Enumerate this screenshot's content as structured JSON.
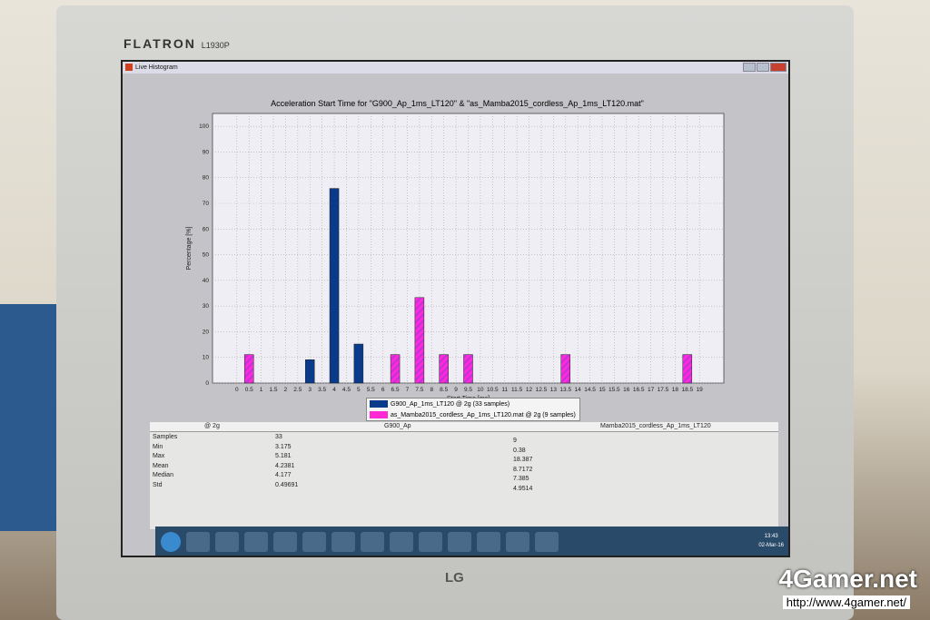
{
  "monitor": {
    "brand": "FLATRON",
    "model": "L1930P",
    "logo": "LG"
  },
  "window": {
    "title": "Live Histogram"
  },
  "chart_data": {
    "type": "bar",
    "title": "Acceleration Start Time for \"G900_Ap_1ms_LT120\" & \"as_Mamba2015_cordless_Ap_1ms_LT120.mat\"",
    "xlabel": "Start Time [ms]",
    "ylabel": "Percentage [%]",
    "xlim": [
      -1,
      20
    ],
    "ylim": [
      0,
      105
    ],
    "xticks": [
      "0",
      "0.5",
      "1",
      "1.5",
      "2",
      "2.5",
      "3",
      "3.5",
      "4",
      "4.5",
      "5",
      "5.5",
      "6",
      "6.5",
      "7",
      "7.5",
      "8",
      "8.5",
      "9",
      "9.5",
      "10",
      "10.5",
      "11",
      "11.5",
      "12",
      "12.5",
      "13",
      "13.5",
      "14",
      "14.5",
      "15",
      "15.5",
      "16",
      "16.5",
      "17",
      "17.5",
      "18",
      "18.5",
      "19"
    ],
    "yticks": [
      0,
      10,
      20,
      30,
      40,
      50,
      60,
      70,
      80,
      90,
      100
    ],
    "grid": true,
    "legend_position": "bottom",
    "series": [
      {
        "name": "G900_Ap_1ms_LT120 @ 2g (33 samples)",
        "color": "#0a3a8a",
        "x": [
          3,
          4,
          5
        ],
        "values": [
          9.1,
          75.8,
          15.2
        ]
      },
      {
        "name": "as_Mamba2015_cordless_Ap_1ms_LT120.mat @ 2g (9 samples)",
        "color": "#ff2ad4",
        "x": [
          0.5,
          6.5,
          7.5,
          8.5,
          9.5,
          13.5,
          18.5
        ],
        "values": [
          11.1,
          11.1,
          33.3,
          11.1,
          11.1,
          11.1,
          11.1
        ]
      }
    ]
  },
  "stats": {
    "header": [
      "@ 2g",
      "G900_Ap",
      "Mamba2015_cordless_Ap_1ms_LT120"
    ],
    "labels": [
      "Samples",
      "Min",
      "Max",
      "Mean",
      "Median",
      "Std"
    ],
    "col1": [
      "33",
      "3.175",
      "5.181",
      "4.2381",
      "4.177",
      "0.49691"
    ],
    "col2": [
      "9",
      "0.38",
      "18.387",
      "8.7172",
      "7.385",
      "4.9514"
    ]
  },
  "taskbar": {
    "time": "13:43",
    "date": "02-Mar-16"
  },
  "watermark": {
    "name": "4Gamer.net",
    "url": "http://www.4gamer.net/"
  }
}
